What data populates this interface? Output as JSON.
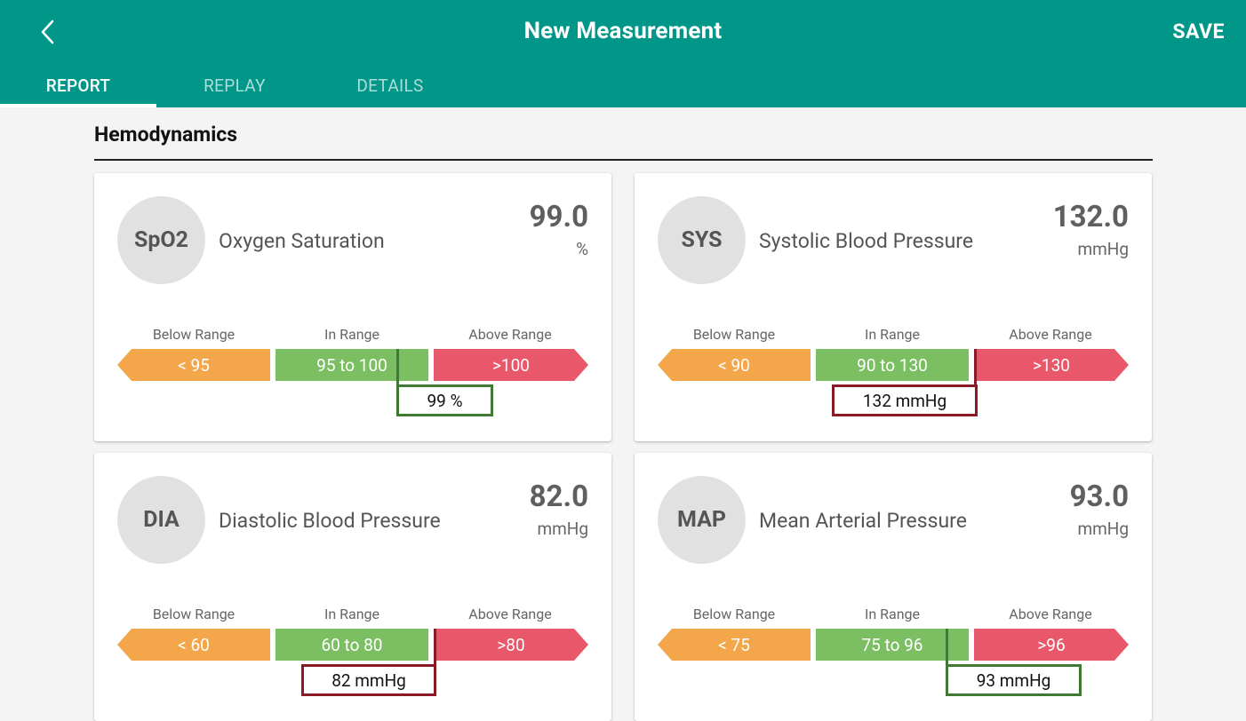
{
  "app_bar": {
    "back_icon": "chevron-left-icon",
    "title": "New Measurement",
    "save_label": "SAVE"
  },
  "tabs": [
    {
      "label": "REPORT",
      "active": true
    },
    {
      "label": "REPLAY",
      "active": false
    },
    {
      "label": "DETAILS",
      "active": false
    }
  ],
  "section": {
    "title": "Hemodynamics"
  },
  "range_labels": {
    "below": "Below Range",
    "in": "In Range",
    "above": "Above Range"
  },
  "colors": {
    "primary": "#009688",
    "below_range": "#f4a64a",
    "in_range": "#7cbf63",
    "above_range": "#e8586a",
    "marker_ok": "#3f7a32",
    "marker_high": "#8a1a26"
  },
  "cards": [
    {
      "abbr": "SpO2",
      "name": "Oxygen Saturation",
      "value": "99.0",
      "unit": "%",
      "below": "< 95",
      "in": "95 to 100",
      "above": ">100",
      "marker_label": "99 %",
      "status": "in"
    },
    {
      "abbr": "SYS",
      "name": "Systolic Blood Pressure",
      "value": "132.0",
      "unit": "mmHg",
      "below": "< 90",
      "in": "90 to 130",
      "above": ">130",
      "marker_label": "132 mmHg",
      "status": "above"
    },
    {
      "abbr": "DIA",
      "name": "Diastolic Blood Pressure",
      "value": "82.0",
      "unit": "mmHg",
      "below": "< 60",
      "in": "60 to 80",
      "above": ">80",
      "marker_label": "82 mmHg",
      "status": "above"
    },
    {
      "abbr": "MAP",
      "name": "Mean Arterial Pressure",
      "value": "93.0",
      "unit": "mmHg",
      "below": "< 75",
      "in": "75 to 96",
      "above": ">96",
      "marker_label": "93 mmHg",
      "status": "in"
    }
  ]
}
